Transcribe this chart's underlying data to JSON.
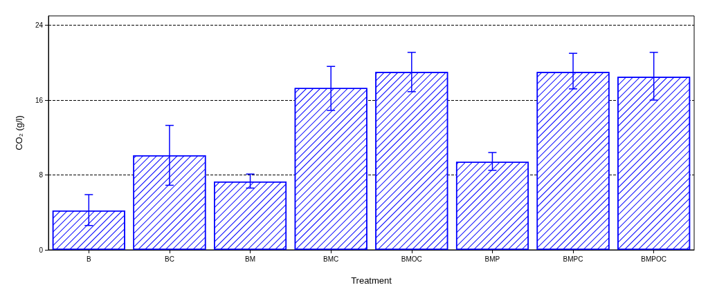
{
  "chart_data": {
    "type": "bar",
    "xlabel": "Treatment",
    "ylabel": "CO₂ (g/l)",
    "categories": [
      "B",
      "BC",
      "BM",
      "BMC",
      "BMOC",
      "BMP",
      "BMPC",
      "BMPOC"
    ],
    "values": [
      4.2,
      10.1,
      7.3,
      17.3,
      19.0,
      9.4,
      19.0,
      18.5
    ],
    "errors": [
      [
        2.6,
        5.9
      ],
      [
        6.9,
        13.3
      ],
      [
        6.6,
        8.1
      ],
      [
        14.9,
        19.6
      ],
      [
        16.9,
        21.1
      ],
      [
        8.5,
        10.4
      ],
      [
        17.2,
        21.0
      ],
      [
        16.0,
        21.1
      ]
    ],
    "color": "#0000ff",
    "ylim": [
      0,
      25
    ],
    "yticks": [
      0,
      8,
      16,
      24
    ],
    "grid": "y"
  }
}
